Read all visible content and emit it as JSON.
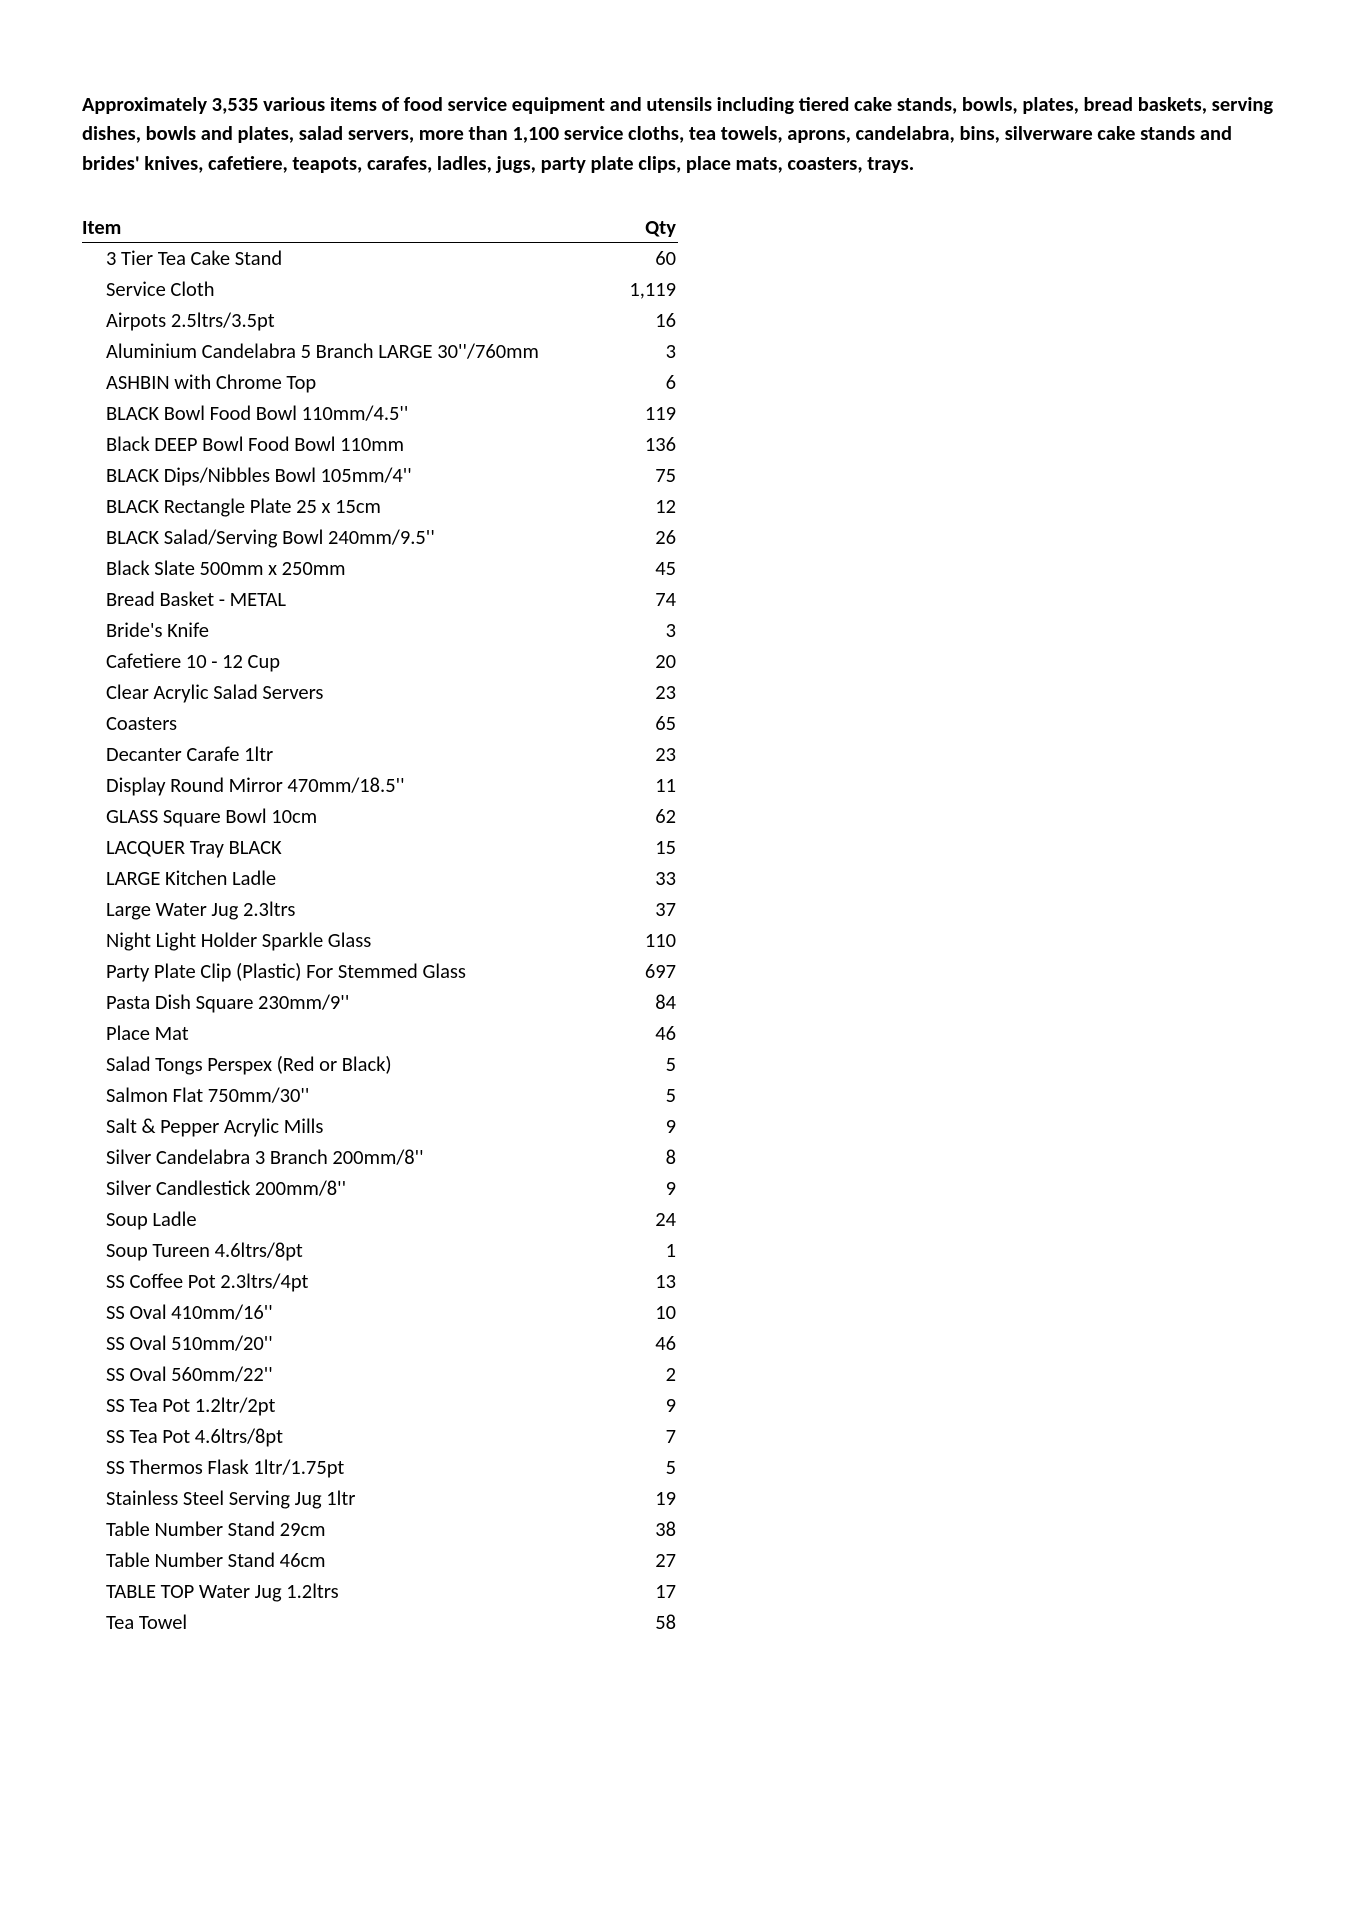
{
  "intro": "Approximately 3,535 various items of food service equipment and utensils including tiered cake stands, bowls, plates, bread baskets, serving dishes, bowls and plates, salad servers, more than 1,100 service cloths, tea towels, aprons, candelabra, bins, silverware cake stands and brides' knives, cafetiere, teapots, carafes,  ladles, jugs, party plate clips, place mats, coasters, trays.",
  "headers": {
    "item": "Item",
    "qty": "Qty"
  },
  "rows": [
    {
      "item": "3 Tier Tea Cake Stand",
      "qty": "60"
    },
    {
      "item": "Service Cloth",
      "qty": "1,119"
    },
    {
      "item": "Airpots 2.5ltrs/3.5pt",
      "qty": "16"
    },
    {
      "item": "Aluminium Candelabra 5 Branch LARGE 30''/760mm",
      "qty": "3"
    },
    {
      "item": "ASHBIN with Chrome Top",
      "qty": "6"
    },
    {
      "item": "BLACK Bowl Food Bowl 110mm/4.5''",
      "qty": "119"
    },
    {
      "item": "Black DEEP Bowl Food Bowl 110mm",
      "qty": "136"
    },
    {
      "item": "BLACK Dips/Nibbles Bowl 105mm/4''",
      "qty": "75"
    },
    {
      "item": "BLACK Rectangle Plate 25 x 15cm",
      "qty": "12"
    },
    {
      "item": "BLACK Salad/Serving Bowl 240mm/9.5''",
      "qty": "26"
    },
    {
      "item": "Black Slate 500mm x 250mm",
      "qty": "45"
    },
    {
      "item": "Bread Basket - METAL",
      "qty": "74"
    },
    {
      "item": "Bride's Knife",
      "qty": "3"
    },
    {
      "item": "Cafetiere 10 - 12 Cup",
      "qty": "20"
    },
    {
      "item": "Clear Acrylic Salad Servers",
      "qty": "23"
    },
    {
      "item": "Coasters",
      "qty": "65"
    },
    {
      "item": "Decanter Carafe 1ltr",
      "qty": "23"
    },
    {
      "item": "Display Round Mirror 470mm/18.5''",
      "qty": "11"
    },
    {
      "item": "GLASS Square Bowl 10cm",
      "qty": "62"
    },
    {
      "item": "LACQUER Tray BLACK",
      "qty": "15"
    },
    {
      "item": "LARGE Kitchen Ladle",
      "qty": "33"
    },
    {
      "item": "Large Water Jug  2.3ltrs",
      "qty": "37"
    },
    {
      "item": "Night Light Holder Sparkle Glass",
      "qty": "110"
    },
    {
      "item": "Party Plate Clip (Plastic) For Stemmed Glass",
      "qty": "697"
    },
    {
      "item": "Pasta Dish Square 230mm/9''",
      "qty": "84"
    },
    {
      "item": "Place Mat",
      "qty": "46"
    },
    {
      "item": "Salad Tongs Perspex (Red or Black)",
      "qty": "5"
    },
    {
      "item": "Salmon Flat 750mm/30''",
      "qty": "5"
    },
    {
      "item": "Salt & Pepper Acrylic Mills",
      "qty": "9"
    },
    {
      "item": "Silver Candelabra 3 Branch 200mm/8''",
      "qty": "8"
    },
    {
      "item": "Silver Candlestick 200mm/8''",
      "qty": "9"
    },
    {
      "item": "Soup Ladle",
      "qty": "24"
    },
    {
      "item": "Soup Tureen 4.6ltrs/8pt",
      "qty": "1"
    },
    {
      "item": "SS Coffee Pot 2.3ltrs/4pt",
      "qty": "13"
    },
    {
      "item": "SS Oval 410mm/16''",
      "qty": "10"
    },
    {
      "item": "SS Oval 510mm/20''",
      "qty": "46"
    },
    {
      "item": "SS Oval 560mm/22''",
      "qty": "2"
    },
    {
      "item": "SS Tea Pot 1.2ltr/2pt",
      "qty": "9"
    },
    {
      "item": "SS Tea Pot 4.6ltrs/8pt",
      "qty": "7"
    },
    {
      "item": "SS Thermos Flask 1ltr/1.75pt",
      "qty": "5"
    },
    {
      "item": "Stainless Steel Serving Jug 1ltr",
      "qty": "19"
    },
    {
      "item": "Table Number Stand 29cm",
      "qty": "38"
    },
    {
      "item": "Table Number Stand 46cm",
      "qty": "27"
    },
    {
      "item": "TABLE TOP Water Jug 1.2ltrs",
      "qty": "17"
    },
    {
      "item": "Tea Towel",
      "qty": "58"
    }
  ]
}
